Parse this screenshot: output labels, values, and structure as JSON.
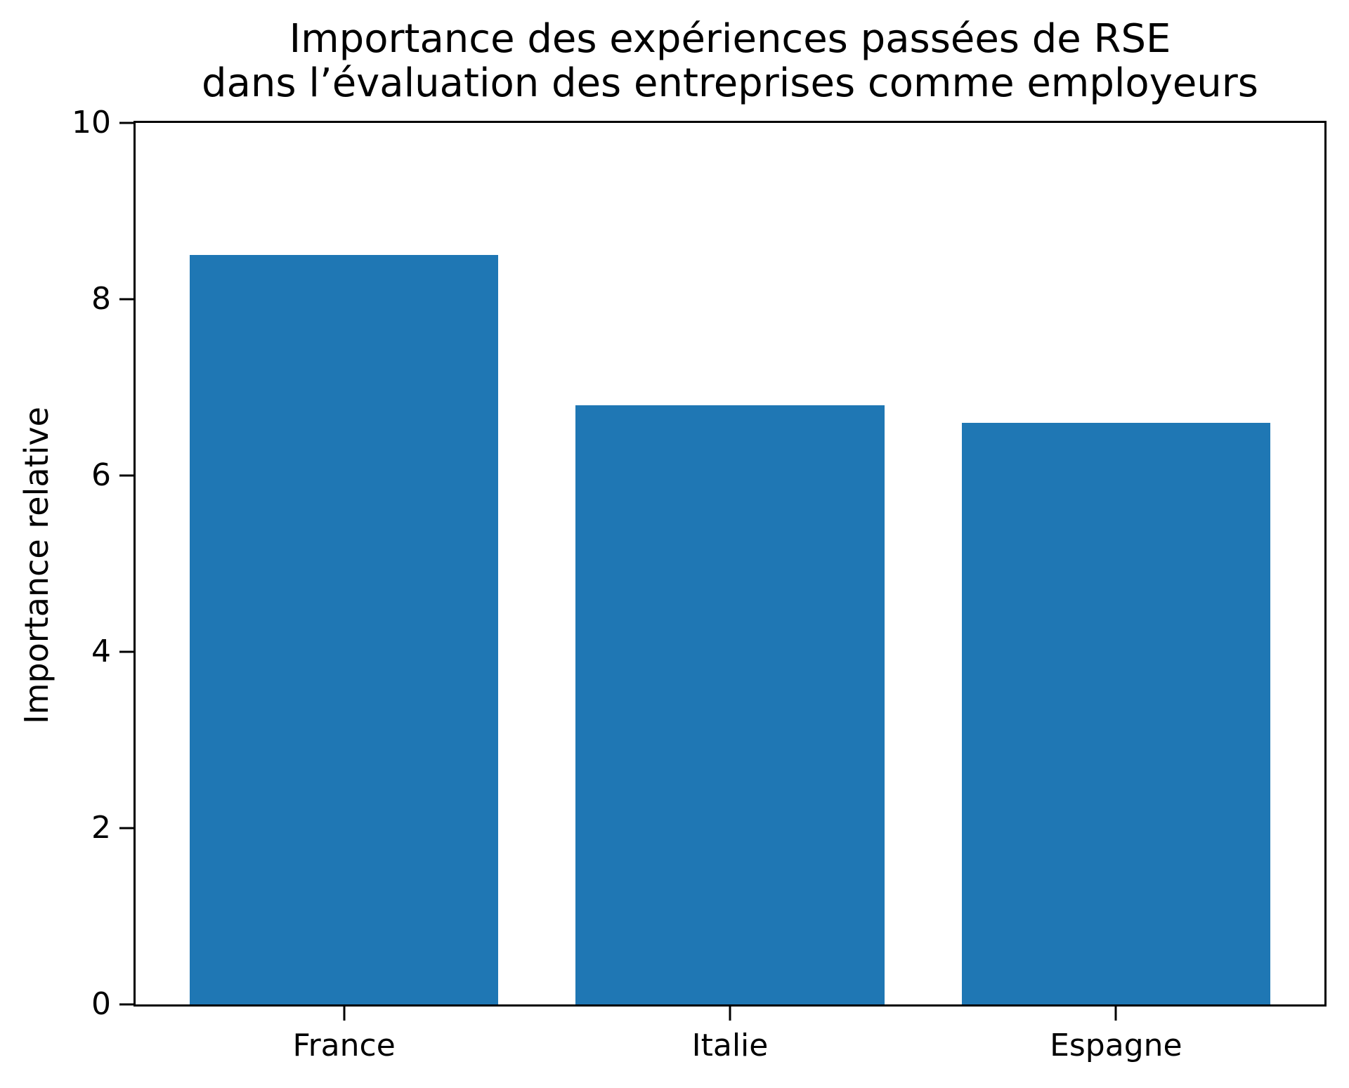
{
  "chart_data": {
    "type": "bar",
    "title": "Importance des expériences passées de RSE\ndans l’évaluation des entreprises comme employeurs",
    "title_lines": [
      "Importance des expériences passées de RSE",
      "dans l’évaluation des entreprises comme employeurs"
    ],
    "xlabel": "",
    "ylabel": "Importance relative",
    "categories": [
      "France",
      "Italie",
      "Espagne"
    ],
    "values": [
      8.5,
      6.8,
      6.6
    ],
    "ylim": [
      0,
      10
    ],
    "xlim": [
      -0.54,
      2.54
    ],
    "yticks": [
      0,
      2,
      4,
      6,
      8,
      10
    ],
    "bar_width": 0.8,
    "bar_color": "#1f77b4",
    "axis_color": "#000000",
    "background_color": "#ffffff",
    "grid": false,
    "legend": null
  }
}
